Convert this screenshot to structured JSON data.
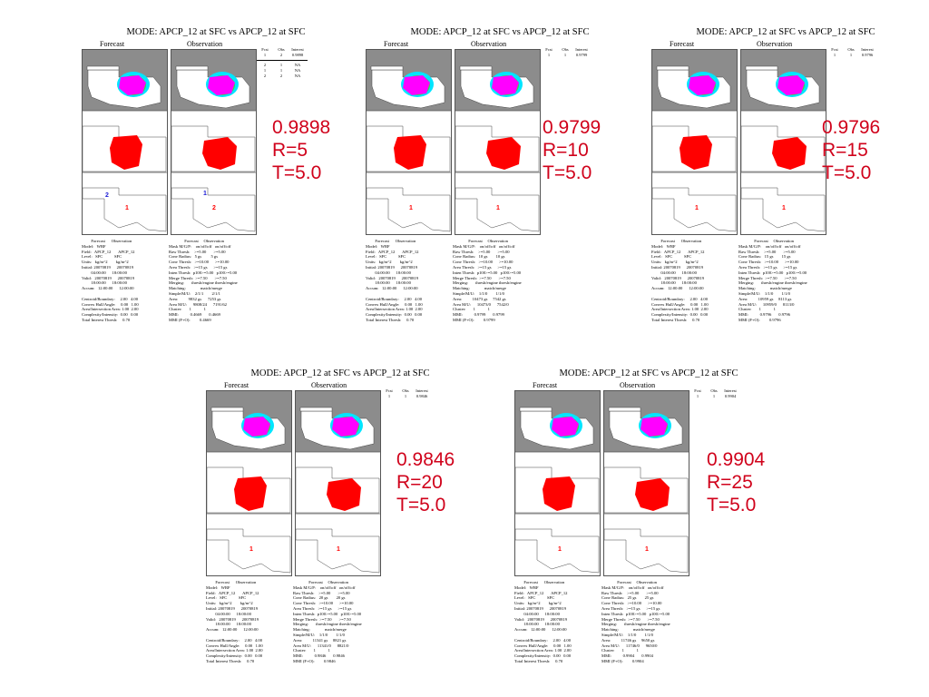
{
  "panels": [
    {
      "title": "MODE: APCP_12 at SFC vs APCP_12 at SFC",
      "forecast_label": "Forecast",
      "observation_label": "Observation",
      "interest_header": [
        "Fcst",
        "Obs",
        "Interest"
      ],
      "interest_rows": [
        [
          "1",
          "2",
          "0.9898"
        ]
      ],
      "interest_rows_extra": [
        [
          "2",
          "1",
          "NA"
        ],
        [
          "1",
          "1",
          "NA"
        ],
        [
          "2",
          "2",
          "NA"
        ]
      ],
      "fcst_object_labels": [
        "2",
        "1"
      ],
      "obs_object_labels": [
        "1",
        "2"
      ],
      "annotation": {
        "score": "0.9898",
        "radius": "R=5",
        "thresh": "T=5.0"
      },
      "meta_left": "         Forecast      Observation\nModel:   WRF\nField:   APCP_12       APCP_12\nLevel:   SFC           SFC\nUnits:   kg/m^2        kg/m^2\nInitial: 20070819      20070819\n         04:00:00      18:00:00\nValid:   20070819      20070819\n         18:00:00      18:00:00\nAccum:   12:00:00      12:00:00\n\nCentroid/Boundary:     2.00   4.00\nConvex Hull/Angle:     0.00   1.00\nArea/Intersection Area: 1.00  2.00\nComplexity/Intensity:  0.00   0.00\nTotal Interest Thresh:     0.70",
      "meta_right": "               Forecast     Observation\nMask M/G/P:    on/off/off   on/off/off\nRaw Thresh:    >=5.00       >=5.00\nConv Radius:   5 gs         5 gs\nConv Thresh:   >=10.00      >=10.00\nArea Thresh:   >=15 gs      >=15 gs\nInten Thresh:  p100>=5.00   p100>=5.00\nMerge Thresh:  >=7.50       >=7.50\nMerging:       thresh/engine thresh/engine\nMatching:              match/merge\nSimple/M/U:    2/1/1        2/1/1\nArea:          9832 gs      7253 gs\nArea M/U:      9808/24      7191/62\nCluster:       1            1\nMMI:           0.4669       0.4669\nMMI (F+O):         0.4669"
    },
    {
      "title": "MODE: APCP_12 at SFC vs APCP_12 at SFC",
      "forecast_label": "Forecast",
      "observation_label": "Observation",
      "interest_header": [
        "Fcst",
        "Obs",
        "Interest"
      ],
      "interest_rows": [
        [
          "1",
          "1",
          "0.9799"
        ]
      ],
      "interest_rows_extra": [],
      "fcst_object_labels": [
        "1"
      ],
      "obs_object_labels": [
        "1"
      ],
      "annotation": {
        "score": "0.9799",
        "radius": "R=10",
        "thresh": "T=5.0"
      },
      "meta_left": "         Forecast      Observation\nModel:   WRF\nField:   APCP_12       APCP_12\nLevel:   SFC           SFC\nUnits:   kg/m^2        kg/m^2\nInitial: 20070819      20070819\n         04:00:00      18:00:00\nValid:   20070819      20070819\n         18:00:00      18:00:00\nAccum:   12:00:00      12:00:00\n\nCentroid/Boundary:     2.00   4.00\nConvex Hull/Angle:     0.00   1.00\nArea/Intersection Area: 1.00  2.00\nComplexity/Intensity:  0.00   0.00\nTotal Interest Thresh:     0.70",
      "meta_right": "               Forecast     Observation\nMask M/G/P:    on/off/off   on/off/off\nRaw Thresh:    >=5.00       >=5.00\nConv Radius:   10 gs        10 gs\nConv Thresh:   >=10.00      >=10.00\nArea Thresh:   >=15 gs      >=15 gs\nInten Thresh:  p100>=5.00   p100>=5.00\nMerge Thresh:  >=7.50       >=7.50\nMerging:       thresh/engine thresh/engine\nMatching:              match/merge\nSimple/M/U:    1/1/0        1/1/0\nArea:          10473 gs     7542 gs\nArea M/U:      10473/0      7542/0\nCluster:       1            1\nMMI:           0.9799       0.9799\nMMI (F+O):         0.9799"
    },
    {
      "title": "MODE: APCP_12 at SFC vs APCP_12 at SFC",
      "forecast_label": "Forecast",
      "observation_label": "Observation",
      "interest_header": [
        "Fcst",
        "Obs",
        "Interest"
      ],
      "interest_rows": [
        [
          "1",
          "1",
          "0.9796"
        ]
      ],
      "interest_rows_extra": [],
      "fcst_object_labels": [
        "1"
      ],
      "obs_object_labels": [
        "1"
      ],
      "annotation": {
        "score": "0.9796",
        "radius": "R=15",
        "thresh": "T=5.0"
      },
      "meta_left": "         Forecast      Observation\nModel:   WRF\nField:   APCP_12       APCP_12\nLevel:   SFC           SFC\nUnits:   kg/m^2        kg/m^2\nInitial: 20070819      20070819\n         04:00:00      18:00:00\nValid:   20070819      20070819\n         18:00:00      18:00:00\nAccum:   12:00:00      12:00:00\n\nCentroid/Boundary:     2.00   4.00\nConvex Hull/Angle:     0.00   1.00\nArea/Intersection Area: 1.00  2.00\nComplexity/Intensity:  0.00   0.00\nTotal Interest Thresh:     0.70",
      "meta_right": "               Forecast     Observation\nMask M/G/P:    on/off/off   on/off/off\nRaw Thresh:    >=5.00       >=5.00\nConv Radius:   15 gs        15 gs\nConv Thresh:   >=10.00      >=10.00\nArea Thresh:   >=15 gs      >=15 gs\nInten Thresh:  p100>=5.00   p100>=5.00\nMerge Thresh:  >=7.50       >=7.50\nMerging:       thresh/engine thresh/engine\nMatching:              match/merge\nSimple/M/U:    1/1/0        1/1/0\nArea:          10959 gs     8113 gs\nArea M/U:      10959/0      8113/0\nCluster:       1            1\nMMI:           0.9796       0.9796\nMMI (F+O):         0.9796"
    },
    {
      "title": "MODE: APCP_12 at SFC vs APCP_12 at SFC",
      "forecast_label": "Forecast",
      "observation_label": "Observation",
      "interest_header": [
        "Fcst",
        "Obs",
        "Interest"
      ],
      "interest_rows": [
        [
          "1",
          "1",
          "0.9846"
        ]
      ],
      "interest_rows_extra": [],
      "fcst_object_labels": [
        "1"
      ],
      "obs_object_labels": [
        "1"
      ],
      "annotation": {
        "score": "0.9846",
        "radius": "R=20",
        "thresh": "T=5.0"
      },
      "meta_left": "         Forecast      Observation\nModel:   WRF\nField:   APCP_12       APCP_12\nLevel:   SFC           SFC\nUnits:   kg/m^2        kg/m^2\nInitial: 20070819      20070819\n         04:00:00      18:00:00\nValid:   20070819      20070819\n         18:00:00      18:00:00\nAccum:   12:00:00      12:00:00\n\nCentroid/Boundary:     2.00   4.00\nConvex Hull/Angle:     0.00   1.00\nArea/Intersection Area: 1.00  2.00\nComplexity/Intensity:  0.00   0.00\nTotal Interest Thresh:     0.70",
      "meta_right": "               Forecast     Observation\nMask M/G/P:    on/off/off   on/off/off\nRaw Thresh:    >=5.00       >=5.00\nConv Radius:   20 gs        20 gs\nConv Thresh:   >=10.00      >=10.00\nArea Thresh:   >=15 gs      >=15 gs\nInten Thresh:  p100>=5.00   p100>=5.00\nMerge Thresh:  >=7.50       >=7.50\nMerging:       thresh/engine thresh/engine\nMatching:              match/merge\nSimple/M/U:    1/1/0        1/1/0\nArea:          11341 gs     8821 gs\nArea M/U:      11341/0      8821/0\nCluster:       1            1\nMMI:           0.9846       0.9846\nMMI (F+O):         0.9846"
    },
    {
      "title": "MODE: APCP_12 at SFC vs APCP_12 at SFC",
      "forecast_label": "Forecast",
      "observation_label": "Observation",
      "interest_header": [
        "Fcst",
        "Obs",
        "Interest"
      ],
      "interest_rows": [
        [
          "1",
          "1",
          "0.9904"
        ]
      ],
      "interest_rows_extra": [],
      "fcst_object_labels": [
        "1"
      ],
      "obs_object_labels": [
        "1"
      ],
      "annotation": {
        "score": "0.9904",
        "radius": "R=25",
        "thresh": "T=5.0"
      },
      "meta_left": "         Forecast      Observation\nModel:   WRF\nField:   APCP_12       APCP_12\nLevel:   SFC           SFC\nUnits:   kg/m^2        kg/m^2\nInitial: 20070819      20070819\n         04:00:00      18:00:00\nValid:   20070819      20070819\n         18:00:00      18:00:00\nAccum:   12:00:00      12:00:00\n\nCentroid/Boundary:     2.00   4.00\nConvex Hull/Angle:     0.00   1.00\nArea/Intersection Area: 1.00  2.00\nComplexity/Intensity:  0.00   0.00\nTotal Interest Thresh:     0.70",
      "meta_right": "               Forecast     Observation\nMask M/G/P:    on/off/off   on/off/off\nRaw Thresh:    >=5.00       >=5.00\nConv Radius:   25 gs        25 gs\nConv Thresh:   >=10.00      >=10.00\nArea Thresh:   >=15 gs      >=15 gs\nInten Thresh:  p100>=5.00   p100>=5.00\nMerge Thresh:  >=7.50       >=7.50\nMerging:       thresh/engine thresh/engine\nMatching:              match/merge\nSimple/M/U:    1/1/0        1/1/0\nArea:          11746 gs     9650 gs\nArea M/U:      11746/0      9650/0\nCluster:       1            1\nMMI:           0.9904       0.9904\nMMI (F+O):         0.9904"
    }
  ],
  "chart_data": {
    "type": "table",
    "title": "MODE: APCP_12 at SFC vs APCP_12 at SFC",
    "columns": [
      "Fcst",
      "Obs",
      "Interest"
    ],
    "rows": [
      [
        "1",
        "2",
        "0.9898"
      ],
      [
        "1",
        "1",
        "0.9799"
      ],
      [
        "1",
        "1",
        "0.9796"
      ],
      [
        "1",
        "1",
        "0.9846"
      ],
      [
        "1",
        "1",
        "0.9904"
      ]
    ],
    "series": [
      {
        "name": "R=5",
        "values": [
          0.9898
        ]
      },
      {
        "name": "R=10",
        "values": [
          0.9799
        ]
      },
      {
        "name": "R=15",
        "values": [
          0.9796
        ]
      },
      {
        "name": "R=20",
        "values": [
          0.9846
        ]
      },
      {
        "name": "R=25",
        "values": [
          0.9904
        ]
      }
    ]
  },
  "colors": {
    "annotation": "#d0021b",
    "object_fill": "#ff0000",
    "precip_magenta": "#ff00ff",
    "precip_cyan": "#00e5ff",
    "precip_green": "#3ddc3d",
    "masked_gray": "#8c8c8c",
    "label_blue": "#1a1ad6"
  }
}
